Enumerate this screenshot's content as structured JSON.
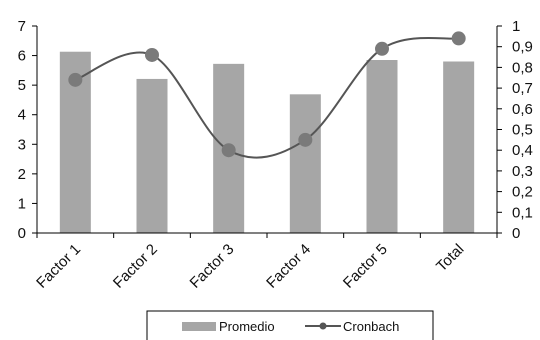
{
  "chart_data": {
    "type": "bar",
    "categories": [
      "Factor 1",
      "Factor 2",
      "Factor 3",
      "Factor 4",
      "Factor 5",
      "Total"
    ],
    "series": [
      {
        "name": "Promedio",
        "type": "bar",
        "axis": "left",
        "values": [
          6.13,
          5.21,
          5.72,
          4.69,
          5.85,
          5.8
        ],
        "color": "#a6a6a6"
      },
      {
        "name": "Cronbach",
        "type": "line",
        "axis": "right",
        "smooth": true,
        "values": [
          0.74,
          0.86,
          0.4,
          0.45,
          0.89,
          0.94
        ],
        "color": "#555555",
        "marker_color": "#7a7a7a"
      }
    ],
    "y_left": {
      "min": 0,
      "max": 7,
      "ticks": [
        "0",
        "1",
        "2",
        "3",
        "4",
        "5",
        "6",
        "7"
      ]
    },
    "y_right": {
      "min": 0,
      "max": 1,
      "ticks": [
        "0",
        "0,1",
        "0,2",
        "0,3",
        "0,4",
        "0,5",
        "0,6",
        "0,7",
        "0,8",
        "0,9",
        "1"
      ]
    },
    "grid": false,
    "legend": {
      "position": "bottom",
      "entries": [
        "Promedio",
        "Cronbach"
      ]
    }
  }
}
